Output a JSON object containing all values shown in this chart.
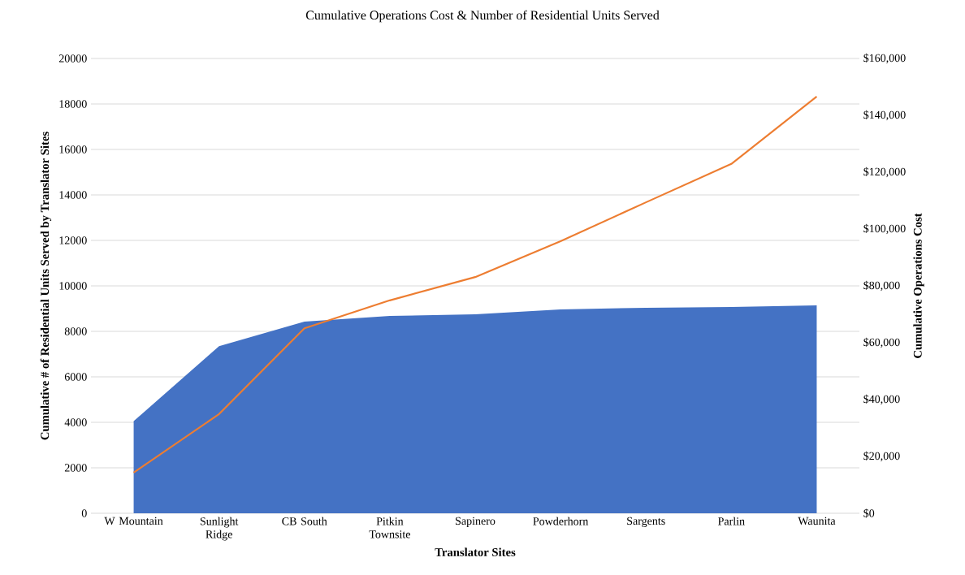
{
  "chart_data": {
    "type": "area",
    "title": "Cumulative Operations Cost & Number of Residential Units Served",
    "xlabel": "Translator Sites",
    "ylabel": "Cumulative # of  Residential Units Served by Translator Sites",
    "y2label": "Cumulative Operations Cost",
    "categories": [
      "W Mountain",
      "Sunlight Ridge",
      "CB South",
      "Pitkin Townsite",
      "Sapinero",
      "Powderhorn",
      "Sargents",
      "Parlin",
      "Waunita"
    ],
    "series": [
      {
        "color": "#4472c4",
        "values": [
          4050,
          7350,
          8430,
          8680,
          8750,
          8960,
          9040,
          9070,
          9140
        ]
      },
      {
        "type": "line",
        "axis": "y2",
        "color": "#ed7d31",
        "values": [
          14300,
          34900,
          65100,
          74900,
          83100,
          95700,
          109400,
          122900,
          146600
        ]
      }
    ],
    "ylim": [
      0,
      20000
    ],
    "yticks": [
      0,
      2000,
      4000,
      6000,
      8000,
      10000,
      12000,
      14000,
      16000,
      18000,
      20000
    ],
    "y2lim": [
      0,
      160000
    ],
    "y2ticks": [
      {
        "value": 0,
        "label": "$0"
      },
      {
        "value": 20000,
        "label": "$20,000"
      },
      {
        "value": 40000,
        "label": "$40,000"
      },
      {
        "value": 60000,
        "label": "$60,000"
      },
      {
        "value": 80000,
        "label": "$80,000"
      },
      {
        "value": 100000,
        "label": "$100,000"
      },
      {
        "value": 120000,
        "label": "$120,000"
      },
      {
        "value": 140000,
        "label": "$140,000"
      },
      {
        "value": 160000,
        "label": "$160,000"
      }
    ],
    "grid": "y"
  }
}
